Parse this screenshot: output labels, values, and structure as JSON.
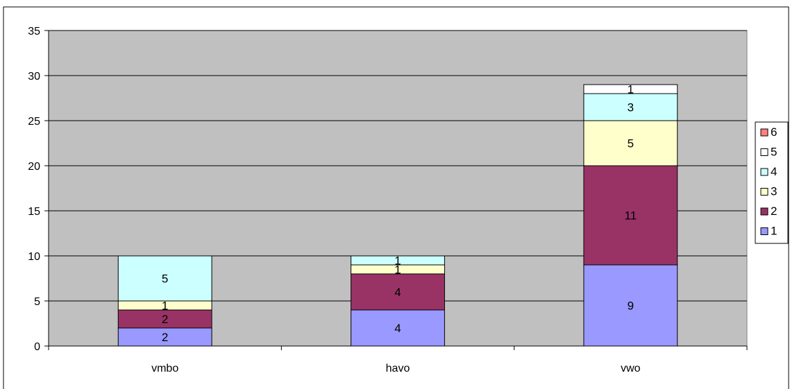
{
  "chart_data": {
    "type": "bar",
    "stacked": true,
    "categories": [
      "vmbo",
      "havo",
      "vwo"
    ],
    "series": [
      {
        "name": "1",
        "values": [
          2,
          4,
          9
        ],
        "color": "#9999ff"
      },
      {
        "name": "2",
        "values": [
          2,
          4,
          11
        ],
        "color": "#993366"
      },
      {
        "name": "3",
        "values": [
          1,
          1,
          5
        ],
        "color": "#ffffcc"
      },
      {
        "name": "4",
        "values": [
          5,
          1,
          3
        ],
        "color": "#ccffff"
      },
      {
        "name": "5",
        "values": [
          0,
          0,
          1
        ],
        "color": "#ffffff"
      },
      {
        "name": "6",
        "values": [
          0,
          0,
          0
        ],
        "color": "#ff8080"
      }
    ],
    "ylim": [
      0,
      35
    ],
    "yticks": [
      0,
      5,
      10,
      15,
      20,
      25,
      30,
      35
    ],
    "grid": true,
    "plot_background": "#c0c0c0",
    "legend_position": "right"
  }
}
